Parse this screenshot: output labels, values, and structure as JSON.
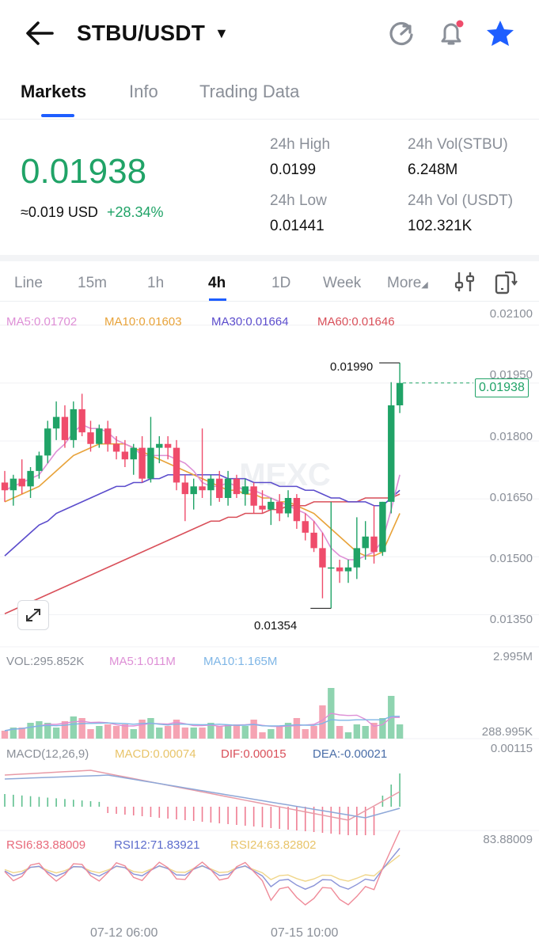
{
  "header": {
    "pair": "STBU/USDT",
    "back_icon": "arrow-left-icon",
    "icons": [
      "refresh-icon",
      "bell-icon",
      "star-icon"
    ],
    "favorite_color": "#1e5eff"
  },
  "tabs": [
    {
      "label": "Markets",
      "active": true
    },
    {
      "label": "Info",
      "active": false
    },
    {
      "label": "Trading Data",
      "active": false
    }
  ],
  "ticker": {
    "price": "0.01938",
    "usd": "≈0.019 USD",
    "change": "+28.34%",
    "stats": [
      {
        "label": "24h High",
        "value": "0.0199"
      },
      {
        "label": "24h Vol(STBU)",
        "value": "6.248M"
      },
      {
        "label": "24h Low",
        "value": "0.01441"
      },
      {
        "label": "24h Vol (USDT)",
        "value": "102.321K"
      }
    ],
    "up_color": "#20a367",
    "down_color": "#ef4c6b"
  },
  "timeframes": [
    "Line",
    "15m",
    "1h",
    "4h",
    "1D",
    "Week",
    "More"
  ],
  "active_timeframe": "4h",
  "toolbar_icons": [
    "indicator-settings-icon",
    "landscape-rotate-icon"
  ],
  "chart": {
    "ma_labels": [
      {
        "text": "MA5:0.01702",
        "color": "#de8fd6"
      },
      {
        "text": "MA10:0.01603",
        "color": "#e8a33a"
      },
      {
        "text": "MA30:0.01664",
        "color": "#5b4ccc"
      },
      {
        "text": "MA60:0.01646",
        "color": "#d9505a"
      }
    ],
    "price_axis": [
      "0.02100",
      "0.01950",
      "0.01800",
      "0.01650",
      "0.01500",
      "0.01350"
    ],
    "current_price": "0.01938",
    "high_marker": "0.01990",
    "low_marker": "0.01354",
    "watermark": "MEXC",
    "volume_labels": [
      {
        "text": "VOL:295.852K",
        "color": "#8a8f98"
      },
      {
        "text": "MA5:1.011M",
        "color": "#de8fd6"
      },
      {
        "text": "MA10:1.165M",
        "color": "#7fb6e6"
      }
    ],
    "volume_axis": [
      "2.995M",
      "288.995K"
    ],
    "macd_labels": [
      {
        "text": "MACD(12,26,9)",
        "color": "#8a8f98"
      },
      {
        "text": "MACD:0.00074",
        "color": "#e8c46a"
      },
      {
        "text": "DIF:0.00015",
        "color": "#d9505a"
      },
      {
        "text": "DEA:-0.00021",
        "color": "#4a6ea8"
      }
    ],
    "macd_axis": "0.00115",
    "rsi_labels": [
      {
        "text": "RSI6:83.88009",
        "color": "#e8697a"
      },
      {
        "text": "RSI12:71.83921",
        "color": "#5b6bcc"
      },
      {
        "text": "RSI24:63.82802",
        "color": "#e8c46a"
      }
    ],
    "rsi_axis": "83.88009",
    "time_axis": [
      "07-12 06:00",
      "07-15 10:00"
    ]
  },
  "chart_data": {
    "type": "candlestick",
    "title": "STBU/USDT 4h",
    "ylim": [
      0.0132,
      0.0212
    ],
    "candles": [
      {
        "o": 0.0168,
        "h": 0.0171,
        "l": 0.0163,
        "c": 0.0166
      },
      {
        "o": 0.0166,
        "h": 0.017,
        "l": 0.0162,
        "c": 0.0169
      },
      {
        "o": 0.0169,
        "h": 0.0174,
        "l": 0.0165,
        "c": 0.0167
      },
      {
        "o": 0.0167,
        "h": 0.0172,
        "l": 0.0164,
        "c": 0.0171
      },
      {
        "o": 0.0171,
        "h": 0.0176,
        "l": 0.0169,
        "c": 0.0175
      },
      {
        "o": 0.0175,
        "h": 0.0184,
        "l": 0.0173,
        "c": 0.0182
      },
      {
        "o": 0.0182,
        "h": 0.0189,
        "l": 0.0179,
        "c": 0.0185
      },
      {
        "o": 0.0185,
        "h": 0.0188,
        "l": 0.0177,
        "c": 0.0179
      },
      {
        "o": 0.0179,
        "h": 0.0189,
        "l": 0.0177,
        "c": 0.0187
      },
      {
        "o": 0.0187,
        "h": 0.0191,
        "l": 0.018,
        "c": 0.0181
      },
      {
        "o": 0.0181,
        "h": 0.0184,
        "l": 0.0176,
        "c": 0.0178
      },
      {
        "o": 0.0178,
        "h": 0.0183,
        "l": 0.0177,
        "c": 0.0182
      },
      {
        "o": 0.0182,
        "h": 0.0184,
        "l": 0.0176,
        "c": 0.0178
      },
      {
        "o": 0.0178,
        "h": 0.018,
        "l": 0.0174,
        "c": 0.0176
      },
      {
        "o": 0.0176,
        "h": 0.0179,
        "l": 0.0172,
        "c": 0.0174
      },
      {
        "o": 0.0174,
        "h": 0.0178,
        "l": 0.017,
        "c": 0.0177
      },
      {
        "o": 0.0177,
        "h": 0.018,
        "l": 0.0168,
        "c": 0.0169
      },
      {
        "o": 0.0169,
        "h": 0.0185,
        "l": 0.0168,
        "c": 0.0177
      },
      {
        "o": 0.0177,
        "h": 0.018,
        "l": 0.0173,
        "c": 0.0178
      },
      {
        "o": 0.0178,
        "h": 0.018,
        "l": 0.0174,
        "c": 0.0177
      },
      {
        "o": 0.0177,
        "h": 0.0179,
        "l": 0.0166,
        "c": 0.0168
      },
      {
        "o": 0.0168,
        "h": 0.017,
        "l": 0.0158,
        "c": 0.0165
      },
      {
        "o": 0.0165,
        "h": 0.0169,
        "l": 0.0161,
        "c": 0.0167
      },
      {
        "o": 0.0167,
        "h": 0.0182,
        "l": 0.0164,
        "c": 0.0166
      },
      {
        "o": 0.0166,
        "h": 0.017,
        "l": 0.0162,
        "c": 0.0169
      },
      {
        "o": 0.0169,
        "h": 0.0171,
        "l": 0.0163,
        "c": 0.0164
      },
      {
        "o": 0.0164,
        "h": 0.0171,
        "l": 0.0162,
        "c": 0.0169
      },
      {
        "o": 0.0169,
        "h": 0.017,
        "l": 0.0164,
        "c": 0.0165
      },
      {
        "o": 0.0165,
        "h": 0.0169,
        "l": 0.0162,
        "c": 0.0167
      },
      {
        "o": 0.0167,
        "h": 0.0168,
        "l": 0.016,
        "c": 0.0162
      },
      {
        "o": 0.0162,
        "h": 0.0166,
        "l": 0.016,
        "c": 0.0161
      },
      {
        "o": 0.0161,
        "h": 0.0164,
        "l": 0.0157,
        "c": 0.0163
      },
      {
        "o": 0.0163,
        "h": 0.0165,
        "l": 0.0158,
        "c": 0.016
      },
      {
        "o": 0.016,
        "h": 0.0166,
        "l": 0.0159,
        "c": 0.0164
      },
      {
        "o": 0.0164,
        "h": 0.0165,
        "l": 0.0156,
        "c": 0.0158
      },
      {
        "o": 0.0158,
        "h": 0.016,
        "l": 0.0153,
        "c": 0.0155
      },
      {
        "o": 0.0155,
        "h": 0.0158,
        "l": 0.015,
        "c": 0.0151
      },
      {
        "o": 0.0151,
        "h": 0.0155,
        "l": 0.0138,
        "c": 0.0146
      },
      {
        "o": 0.0146,
        "h": 0.0163,
        "l": 0.01354,
        "c": 0.0146
      },
      {
        "o": 0.0146,
        "h": 0.0148,
        "l": 0.0142,
        "c": 0.0145
      },
      {
        "o": 0.0145,
        "h": 0.0148,
        "l": 0.0142,
        "c": 0.0146
      },
      {
        "o": 0.0146,
        "h": 0.0159,
        "l": 0.0143,
        "c": 0.0151
      },
      {
        "o": 0.0151,
        "h": 0.0158,
        "l": 0.0148,
        "c": 0.0154
      },
      {
        "o": 0.0154,
        "h": 0.0162,
        "l": 0.0147,
        "c": 0.015
      },
      {
        "o": 0.015,
        "h": 0.0163,
        "l": 0.0149,
        "c": 0.0163
      },
      {
        "o": 0.0163,
        "h": 0.0194,
        "l": 0.016,
        "c": 0.0188
      },
      {
        "o": 0.0188,
        "h": 0.0199,
        "l": 0.0186,
        "c": 0.01938
      }
    ],
    "ma5": [
      0.0166,
      0.0167,
      0.0168,
      0.0169,
      0.017,
      0.0173,
      0.0176,
      0.0178,
      0.0181,
      0.0183,
      0.0182,
      0.0182,
      0.0181,
      0.0179,
      0.0178,
      0.0177,
      0.0175,
      0.0175,
      0.0175,
      0.0175,
      0.0174,
      0.0173,
      0.0171,
      0.0168,
      0.0167,
      0.0167,
      0.0168,
      0.0167,
      0.0166,
      0.0166,
      0.0165,
      0.0164,
      0.0163,
      0.0162,
      0.0161,
      0.016,
      0.0158,
      0.0155,
      0.0151,
      0.0149,
      0.0148,
      0.0148,
      0.0149,
      0.015,
      0.0153,
      0.0161,
      0.017
    ],
    "ma10": [
      0.0163,
      0.0164,
      0.0165,
      0.0166,
      0.0167,
      0.0169,
      0.0171,
      0.0173,
      0.0175,
      0.0176,
      0.0177,
      0.0178,
      0.0178,
      0.0178,
      0.0178,
      0.0177,
      0.0176,
      0.0175,
      0.0174,
      0.0173,
      0.0172,
      0.0171,
      0.017,
      0.0169,
      0.0168,
      0.0167,
      0.0166,
      0.0166,
      0.0165,
      0.0165,
      0.0164,
      0.0164,
      0.0163,
      0.0163,
      0.0162,
      0.0161,
      0.016,
      0.0158,
      0.0156,
      0.0154,
      0.0152,
      0.015,
      0.0149,
      0.0149,
      0.015,
      0.0155,
      0.016
    ],
    "ma30": [
      0.0149,
      0.0151,
      0.0153,
      0.0155,
      0.0157,
      0.0158,
      0.016,
      0.0161,
      0.0162,
      0.0163,
      0.0164,
      0.0165,
      0.0166,
      0.0167,
      0.0167,
      0.0168,
      0.0168,
      0.0169,
      0.0169,
      0.017,
      0.017,
      0.017,
      0.017,
      0.017,
      0.017,
      0.017,
      0.0169,
      0.0169,
      0.0169,
      0.0168,
      0.0168,
      0.0168,
      0.0167,
      0.0167,
      0.0167,
      0.0166,
      0.0166,
      0.0165,
      0.0164,
      0.0164,
      0.0163,
      0.0163,
      0.0163,
      0.0162,
      0.0162,
      0.0164,
      0.0166
    ],
    "ma60": [
      0.0134,
      0.0135,
      0.0136,
      0.0137,
      0.0138,
      0.0139,
      0.014,
      0.0141,
      0.0142,
      0.0143,
      0.0144,
      0.0145,
      0.0146,
      0.0147,
      0.0148,
      0.0149,
      0.015,
      0.0151,
      0.0152,
      0.0153,
      0.0154,
      0.0155,
      0.0156,
      0.0157,
      0.0158,
      0.0158,
      0.0159,
      0.0159,
      0.016,
      0.016,
      0.016,
      0.0161,
      0.0161,
      0.0162,
      0.0162,
      0.0162,
      0.0163,
      0.0163,
      0.0163,
      0.0163,
      0.0163,
      0.0163,
      0.0164,
      0.0164,
      0.0164,
      0.0164,
      0.0165
    ]
  }
}
